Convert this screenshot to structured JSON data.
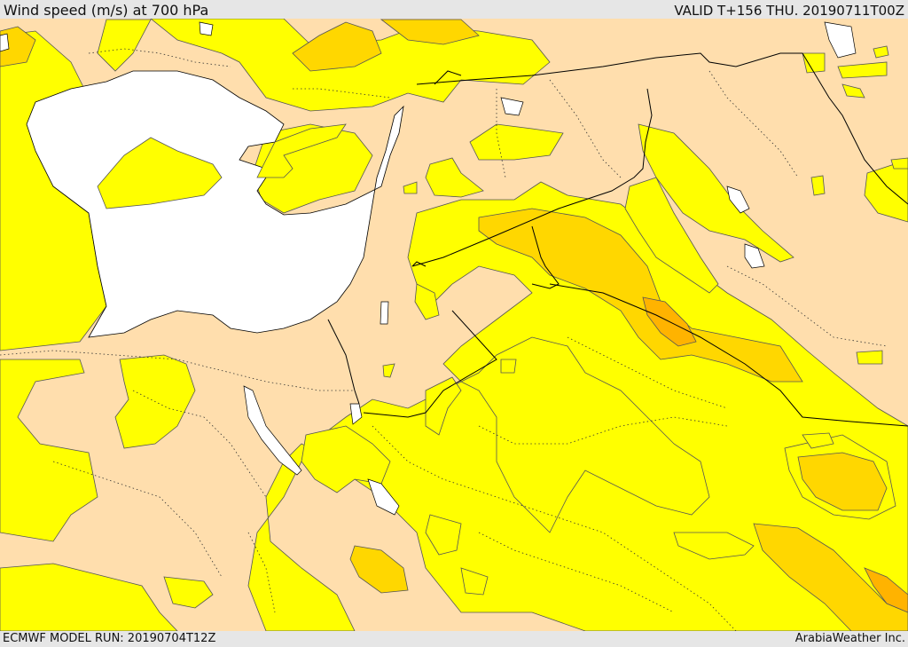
{
  "header": {
    "title": "Wind speed (m/s) at 700 hPa",
    "valid": "VALID T+156 THU. 20190711T00Z"
  },
  "footer": {
    "model_run": "ECMWF MODEL RUN: 20190704T12Z",
    "credit": "ArabiaWeather Inc."
  },
  "map": {
    "colors": {
      "calm": "#ffffff",
      "light": "#ffdead",
      "moderate": "#ffff00",
      "fresh": "#ffd700",
      "strong": "#ffb300",
      "contour": "#555555",
      "border": "#000000"
    }
  }
}
